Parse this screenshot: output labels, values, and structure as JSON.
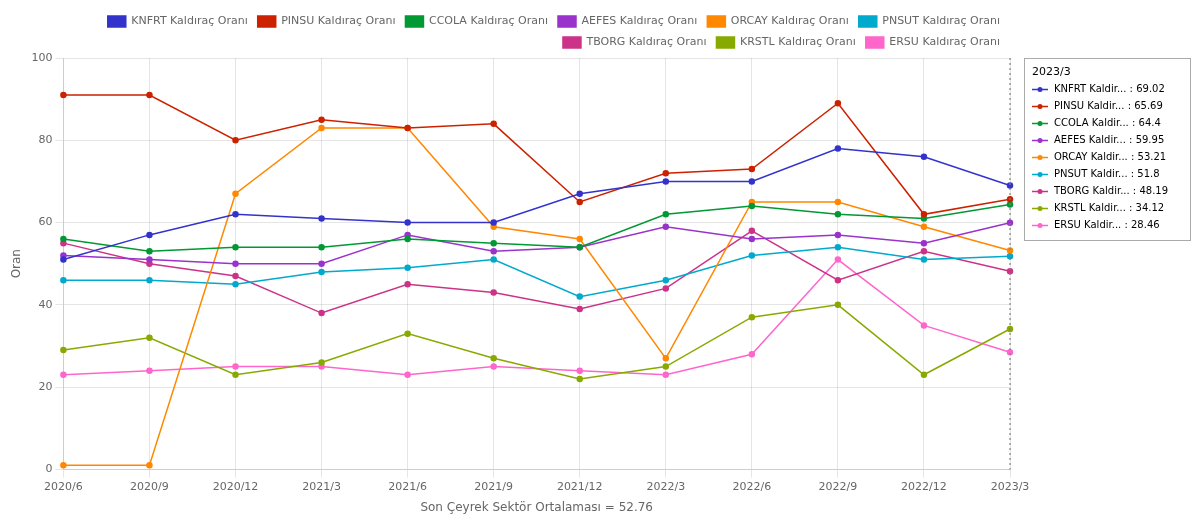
{
  "chart_data": {
    "type": "line",
    "categories": [
      "2020/6",
      "2020/9",
      "2020/12",
      "2021/3",
      "2021/6",
      "2021/9",
      "2021/12",
      "2022/3",
      "2022/6",
      "2022/9",
      "2022/12",
      "2023/3"
    ],
    "series": [
      {
        "name": "KNFRT Kaldıraç Oranı",
        "color": "#3333cc",
        "values": [
          51,
          57,
          62,
          61,
          60,
          60,
          67,
          70,
          70,
          78,
          76,
          69.02
        ]
      },
      {
        "name": "PINSU Kaldıraç Oranı",
        "color": "#cc2200",
        "values": [
          91,
          91,
          80,
          85,
          83,
          84,
          65,
          72,
          73,
          89,
          62,
          65.69
        ]
      },
      {
        "name": "CCOLA Kaldıraç Oranı",
        "color": "#009933",
        "values": [
          56,
          53,
          54,
          54,
          56,
          55,
          54,
          62,
          64,
          62,
          61,
          64.4
        ]
      },
      {
        "name": "AEFES Kaldıraç Oranı",
        "color": "#9933cc",
        "values": [
          52,
          51,
          50,
          50,
          57,
          53,
          54,
          59,
          56,
          57,
          55,
          59.95
        ]
      },
      {
        "name": "ORCAY Kaldıraç Oranı",
        "color": "#ff8800",
        "values": [
          1,
          1,
          67,
          83,
          83,
          59,
          56,
          27,
          65,
          65,
          59,
          53.21
        ]
      },
      {
        "name": "PNSUT Kaldıraç Oranı",
        "color": "#00aacc",
        "values": [
          46,
          46,
          45,
          48,
          49,
          51,
          42,
          46,
          52,
          54,
          51,
          51.8
        ]
      },
      {
        "name": "TBORG Kaldıraç Oranı",
        "color": "#cc3388",
        "values": [
          55,
          50,
          47,
          38,
          45,
          43,
          39,
          44,
          58,
          46,
          53,
          48.19
        ]
      },
      {
        "name": "KRSTL Kaldıraç Oranı",
        "color": "#88aa00",
        "values": [
          29,
          32,
          23,
          26,
          33,
          27,
          22,
          25,
          37,
          40,
          23,
          34.12
        ]
      },
      {
        "name": "ERSU Kaldıraç Oranı",
        "color": "#ff66cc",
        "values": [
          23,
          24,
          25,
          25,
          23,
          25,
          24,
          23,
          28,
          51,
          35,
          28.46
        ]
      }
    ],
    "xlabel": "Son Çeyrek Sektör Ortalaması = 52.76",
    "ylabel": "Oran",
    "ylim": [
      0,
      100
    ],
    "yticks": [
      0,
      20,
      40,
      60,
      80,
      100
    ],
    "grid": true,
    "legend": "upper right",
    "marker": "circle",
    "annotations": [
      {
        "title": "2023/3",
        "lines": [
          "KNFRT Kaldir... : 69.02",
          "PINSU Kaldir... : 65.69",
          "CCOLA Kaldir... : 64.4",
          "AEFES Kaldir... : 59.95",
          "ORCAY Kaldir... : 53.21",
          "PNSUT Kaldir... : 51.8",
          "TBORG Kaldir... : 48.19",
          "KRSTL Kaldir... : 34.12",
          "ERSU Kaldir... : 28.46"
        ]
      }
    ]
  }
}
